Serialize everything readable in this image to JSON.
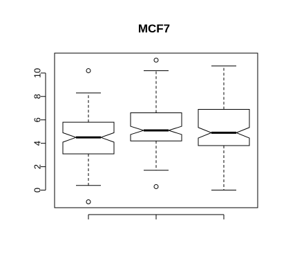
{
  "chart_data": {
    "type": "boxplot",
    "title": "MCF7",
    "xlabel": "",
    "ylabel": "",
    "ylim": [
      -1.5,
      11.7
    ],
    "yticks": [
      0,
      2,
      4,
      6,
      8,
      10
    ],
    "notched": true,
    "boxes": [
      {
        "low": 0.4,
        "q1": 3.1,
        "median": 4.5,
        "q3": 5.8,
        "high": 8.3,
        "notch_low": 4.1,
        "notch_high": 4.9,
        "outliers": [
          10.2,
          -1.0
        ]
      },
      {
        "low": 1.7,
        "q1": 4.2,
        "median": 5.1,
        "q3": 6.6,
        "high": 10.2,
        "notch_low": 4.75,
        "notch_high": 5.45,
        "outliers": [
          11.1,
          0.3
        ]
      },
      {
        "low": 0.0,
        "q1": 3.8,
        "median": 4.9,
        "q3": 6.9,
        "high": 10.6,
        "notch_low": 4.45,
        "notch_high": 5.35,
        "outliers": []
      }
    ]
  }
}
